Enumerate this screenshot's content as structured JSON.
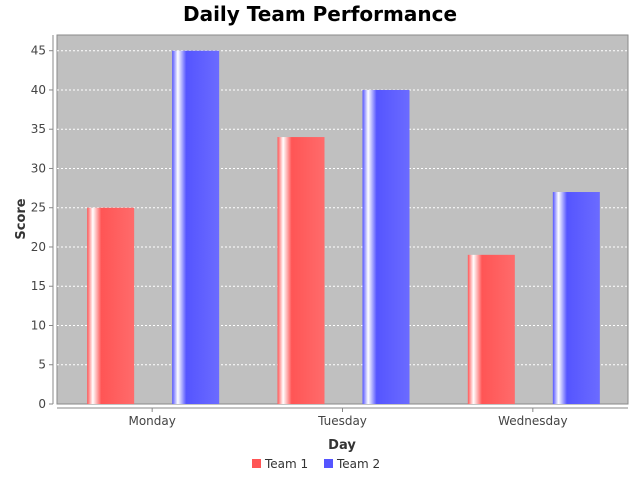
{
  "chart_data": {
    "type": "bar",
    "title": "Daily Team Performance",
    "xlabel": "Day",
    "ylabel": "Score",
    "categories": [
      "Monday",
      "Tuesday",
      "Wednesday"
    ],
    "series": [
      {
        "name": "Team 1",
        "values": [
          25,
          34,
          19
        ],
        "color": "#ff5555"
      },
      {
        "name": "Team 2",
        "values": [
          45,
          40,
          27
        ],
        "color": "#5555ff"
      }
    ],
    "ylim": [
      0,
      47
    ],
    "yticks": [
      0,
      5,
      10,
      15,
      20,
      25,
      30,
      35,
      40,
      45
    ],
    "grid": true,
    "legend": "bottom-center",
    "plot_background": "#c0c0c0"
  }
}
